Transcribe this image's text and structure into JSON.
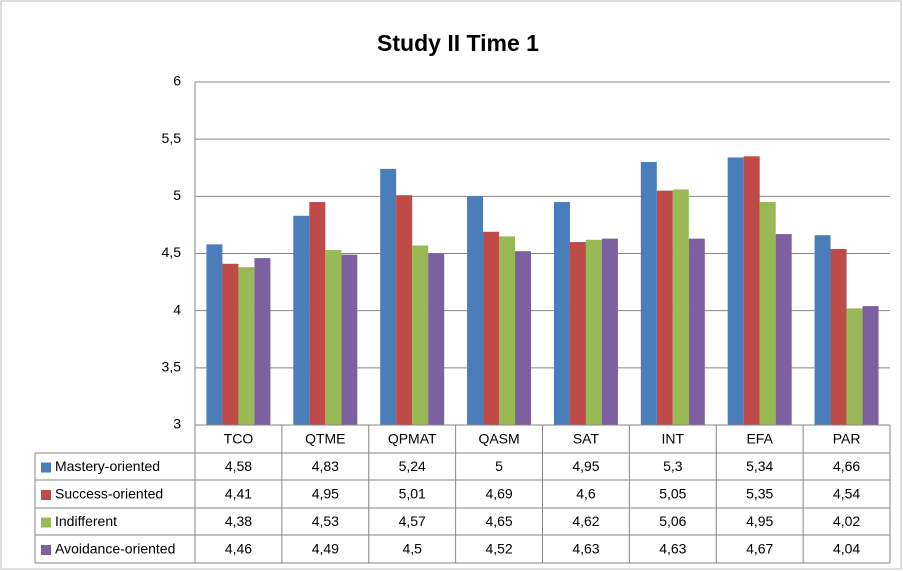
{
  "chart_data": {
    "type": "bar",
    "title": "Study II Time 1",
    "categories": [
      "TCO",
      "QTME",
      "QPMAT",
      "QASM",
      "SAT",
      "INT",
      "EFA",
      "PAR"
    ],
    "series": [
      {
        "name": "Mastery-oriented",
        "color": "#4a7ebb",
        "values": [
          4.58,
          4.83,
          5.24,
          5,
          4.95,
          5.3,
          5.34,
          4.66
        ],
        "value_labels": [
          "4,58",
          "4,83",
          "5,24",
          "5",
          "4,95",
          "5,3",
          "5,34",
          "4,66"
        ]
      },
      {
        "name": "Success-oriented",
        "color": "#be4b48",
        "values": [
          4.41,
          4.95,
          5.01,
          4.69,
          4.6,
          5.05,
          5.35,
          4.54
        ],
        "value_labels": [
          "4,41",
          "4,95",
          "5,01",
          "4,69",
          "4,6",
          "5,05",
          "5,35",
          "4,54"
        ]
      },
      {
        "name": "Indifferent",
        "color": "#98b954",
        "values": [
          4.38,
          4.53,
          4.57,
          4.65,
          4.62,
          5.06,
          4.95,
          4.02
        ],
        "value_labels": [
          "4,38",
          "4,53",
          "4,57",
          "4,65",
          "4,62",
          "5,06",
          "4,95",
          "4,02"
        ]
      },
      {
        "name": "Avoidance-oriented",
        "color": "#7d60a0",
        "values": [
          4.46,
          4.49,
          4.5,
          4.52,
          4.63,
          4.63,
          4.67,
          4.04
        ],
        "value_labels": [
          "4,46",
          "4,49",
          "4,5",
          "4,52",
          "4,63",
          "4,63",
          "4,67",
          "4,04"
        ]
      }
    ],
    "ylim": [
      3,
      6
    ],
    "yticks": [
      3,
      {
        "value": 3.5,
        "label": "3,5"
      },
      4,
      {
        "value": 4.5,
        "label": "4,5"
      },
      5,
      {
        "value": 5.5,
        "label": "5,5"
      },
      6
    ],
    "grid": true
  }
}
